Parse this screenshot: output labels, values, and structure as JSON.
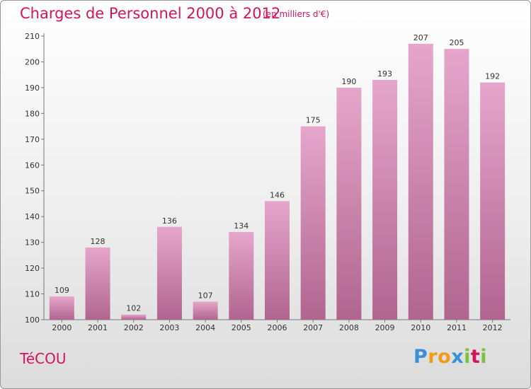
{
  "header": {
    "title": "Charges de Personnel 2000 à 2012",
    "unit": "(en milliers d'€)"
  },
  "footer": {
    "commune": "TéCOU",
    "logo_text": "Proxiti"
  },
  "colors": {
    "accent": "#d4145a",
    "bar_top": "#e6a6cc",
    "bar_bottom": "#b0658f",
    "logo_letters": [
      "#3a8fd6",
      "#f29b1a",
      "#f29b1a",
      "#3a8fd6",
      "#7fbf3f",
      "#d4145a",
      "#7fbf3f"
    ]
  },
  "chart_data": {
    "type": "bar",
    "title": "Charges de Personnel 2000 à 2012",
    "subtitle": "(en milliers d'€)",
    "xlabel": "",
    "ylabel": "",
    "categories": [
      "2000",
      "2001",
      "2002",
      "2003",
      "2004",
      "2005",
      "2006",
      "2007",
      "2008",
      "2009",
      "2010",
      "2011",
      "2012"
    ],
    "values": [
      109,
      128,
      102,
      136,
      107,
      134,
      146,
      175,
      190,
      193,
      207,
      205,
      192
    ],
    "ylim": [
      100,
      210
    ],
    "yticks": [
      100,
      110,
      120,
      130,
      140,
      150,
      160,
      170,
      180,
      190,
      200,
      210
    ],
    "grid": false,
    "legend": "none"
  }
}
